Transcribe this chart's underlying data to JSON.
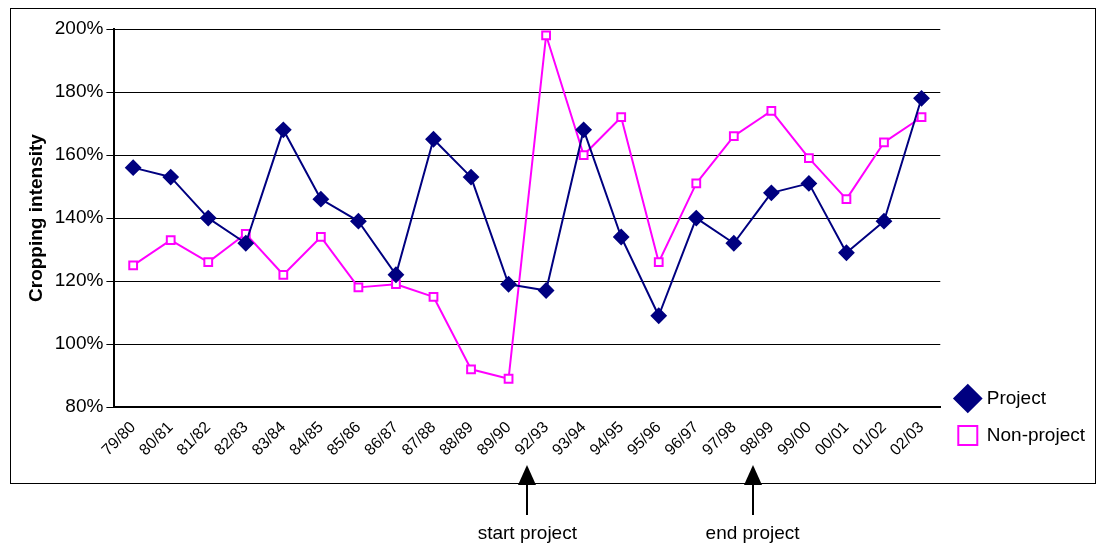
{
  "chart_data": {
    "type": "line",
    "ylabel": "Cropping intensity",
    "categories": [
      "79/80",
      "80/81",
      "81/82",
      "82/83",
      "83/84",
      "84/85",
      "85/86",
      "86/87",
      "87/88",
      "88/89",
      "89/90",
      "92/93",
      "93/94",
      "94/95",
      "95/96",
      "96/97",
      "97/98",
      "98/99",
      "99/00",
      "00/01",
      "01/02",
      "02/03"
    ],
    "series": [
      {
        "name": "Project",
        "color": "#000080",
        "marker": "diamond",
        "values": [
          156,
          153,
          140,
          132,
          168,
          146,
          139,
          122,
          165,
          153,
          119,
          117,
          168,
          134,
          109,
          140,
          132,
          148,
          151,
          129,
          139,
          178
        ]
      },
      {
        "name": "Non-project",
        "color": "#ff00ff",
        "marker": "square",
        "values": [
          125,
          133,
          126,
          135,
          122,
          134,
          118,
          119,
          115,
          92,
          89,
          198,
          160,
          172,
          126,
          151,
          166,
          174,
          159,
          146,
          164,
          172
        ]
      }
    ],
    "ylim": [
      80,
      200
    ],
    "yticks": [
      {
        "value": 80,
        "label": "80%"
      },
      {
        "value": 100,
        "label": "100%"
      },
      {
        "value": 120,
        "label": "120%"
      },
      {
        "value": 140,
        "label": "140%"
      },
      {
        "value": 160,
        "label": "160%"
      },
      {
        "value": 180,
        "label": "180%"
      },
      {
        "value": 200,
        "label": "200%"
      }
    ],
    "grid": "y",
    "legend": "bottom right",
    "line_style": "solid",
    "annotations": [
      "start project",
      "end project"
    ]
  }
}
